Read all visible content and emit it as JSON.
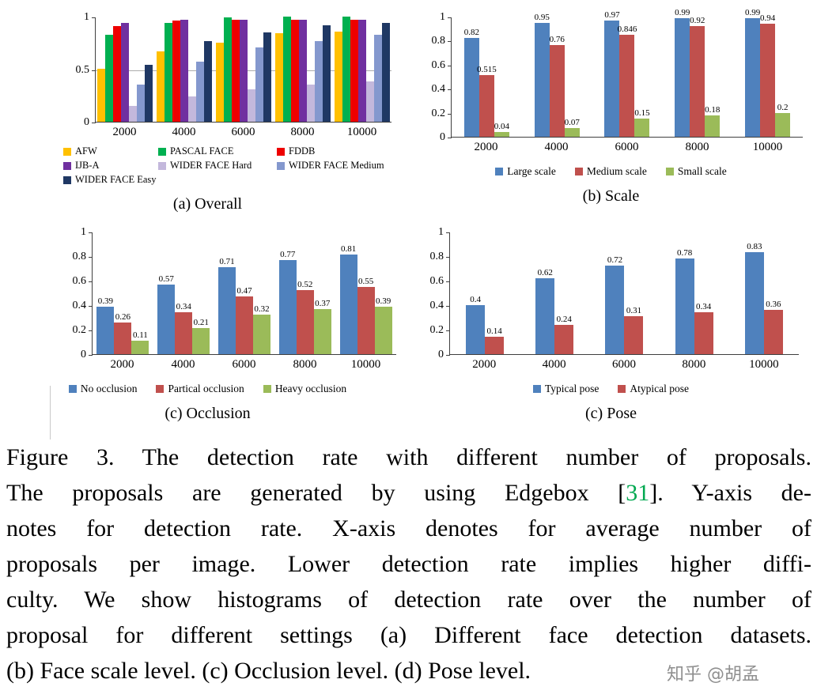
{
  "chart_data": [
    {
      "type": "bar",
      "title": "(a) Overall",
      "xlabel": "",
      "ylabel": "",
      "categories": [
        "2000",
        "4000",
        "6000",
        "8000",
        "10000"
      ],
      "ylim": [
        0,
        1
      ],
      "yticks": [
        0,
        0.5,
        1
      ],
      "gridlines": [
        0.5
      ],
      "grid": true,
      "show_value_labels": false,
      "legend_layout": "grid",
      "legend_position": "bottom",
      "series": [
        {
          "name": "AFW",
          "color": "#FFC000",
          "values": [
            0.5,
            0.67,
            0.75,
            0.84,
            0.86
          ]
        },
        {
          "name": "PASCAL FACE",
          "color": "#00B050",
          "values": [
            0.83,
            0.94,
            0.99,
            1.0,
            1.0
          ]
        },
        {
          "name": "FDDB",
          "color": "#EE0000",
          "values": [
            0.91,
            0.96,
            0.97,
            0.97,
            0.97
          ]
        },
        {
          "name": "IJB-A",
          "color": "#7030A0",
          "values": [
            0.94,
            0.97,
            0.97,
            0.97,
            0.97
          ]
        },
        {
          "name": "WIDER FACE Hard",
          "color": "#C3B8DC",
          "values": [
            0.15,
            0.24,
            0.31,
            0.35,
            0.38
          ]
        },
        {
          "name": "WIDER FACE Medium",
          "color": "#8498CE",
          "values": [
            0.35,
            0.57,
            0.71,
            0.77,
            0.83
          ]
        },
        {
          "name": "WIDER FACE Easy",
          "color": "#1F3864",
          "values": [
            0.54,
            0.77,
            0.85,
            0.92,
            0.94
          ]
        }
      ]
    },
    {
      "type": "bar",
      "title": "(b) Scale",
      "xlabel": "",
      "ylabel": "",
      "categories": [
        "2000",
        "4000",
        "6000",
        "8000",
        "10000"
      ],
      "ylim": [
        0,
        1
      ],
      "yticks": [
        0,
        0.2,
        0.4,
        0.6,
        0.8,
        1
      ],
      "gridlines": [],
      "grid": false,
      "show_value_labels": true,
      "legend_layout": "row",
      "legend_position": "bottom",
      "series": [
        {
          "name": "Large scale",
          "color": "#4F81BD",
          "values": [
            0.82,
            0.95,
            0.97,
            0.99,
            0.99
          ]
        },
        {
          "name": "Medium scale",
          "color": "#C0504D",
          "values": [
            0.515,
            0.76,
            0.846,
            0.92,
            0.94
          ]
        },
        {
          "name": "Small scale",
          "color": "#9BBB59",
          "values": [
            0.04,
            0.07,
            0.15,
            0.18,
            0.2
          ]
        }
      ]
    },
    {
      "type": "bar",
      "title": "(c) Occlusion",
      "xlabel": "",
      "ylabel": "",
      "categories": [
        "2000",
        "4000",
        "6000",
        "8000",
        "10000"
      ],
      "ylim": [
        0,
        1
      ],
      "yticks": [
        0,
        0.2,
        0.4,
        0.6,
        0.8,
        1
      ],
      "gridlines": [],
      "grid": false,
      "show_value_labels": true,
      "legend_layout": "row",
      "legend_position": "bottom",
      "series": [
        {
          "name": "No occlusion",
          "color": "#4F81BD",
          "values": [
            0.39,
            0.57,
            0.71,
            0.77,
            0.81
          ]
        },
        {
          "name": "Partical occlusion",
          "color": "#C0504D",
          "values": [
            0.26,
            0.34,
            0.47,
            0.52,
            0.55
          ]
        },
        {
          "name": "Heavy occlusion",
          "color": "#9BBB59",
          "values": [
            0.11,
            0.21,
            0.32,
            0.37,
            0.39
          ]
        }
      ]
    },
    {
      "type": "bar",
      "title": "(c) Pose",
      "xlabel": "",
      "ylabel": "",
      "categories": [
        "2000",
        "4000",
        "6000",
        "8000",
        "10000"
      ],
      "ylim": [
        0,
        1
      ],
      "yticks": [
        0,
        0.2,
        0.4,
        0.6,
        0.8,
        1
      ],
      "gridlines": [],
      "grid": false,
      "show_value_labels": true,
      "legend_layout": "row",
      "legend_position": "bottom",
      "series": [
        {
          "name": "Typical pose",
          "color": "#4F81BD",
          "values": [
            0.4,
            0.62,
            0.72,
            0.78,
            0.83
          ]
        },
        {
          "name": "Atypical pose",
          "color": "#C0504D",
          "values": [
            0.14,
            0.24,
            0.31,
            0.34,
            0.36
          ]
        }
      ]
    }
  ],
  "caption": {
    "ref_color": "#00A850",
    "lines": [
      {
        "text": "Figure 3. The detection rate with different number of proposals."
      },
      {
        "pre": "The proposals are generated by using Edgebox [",
        "ref": "31",
        "post": "]. Y-axis de-"
      },
      {
        "text": "notes for detection rate. X-axis denotes for average number of"
      },
      {
        "text": "proposals per image. Lower detection rate implies higher diffi-"
      },
      {
        "text": "culty. We show histograms of detection rate over the number of"
      },
      {
        "text": "proposal for different settings (a) Different face detection datasets."
      },
      {
        "text": "(b) Face scale level. (c) Occlusion level. (d) Pose level."
      }
    ]
  },
  "watermark": "知乎 @胡孟"
}
